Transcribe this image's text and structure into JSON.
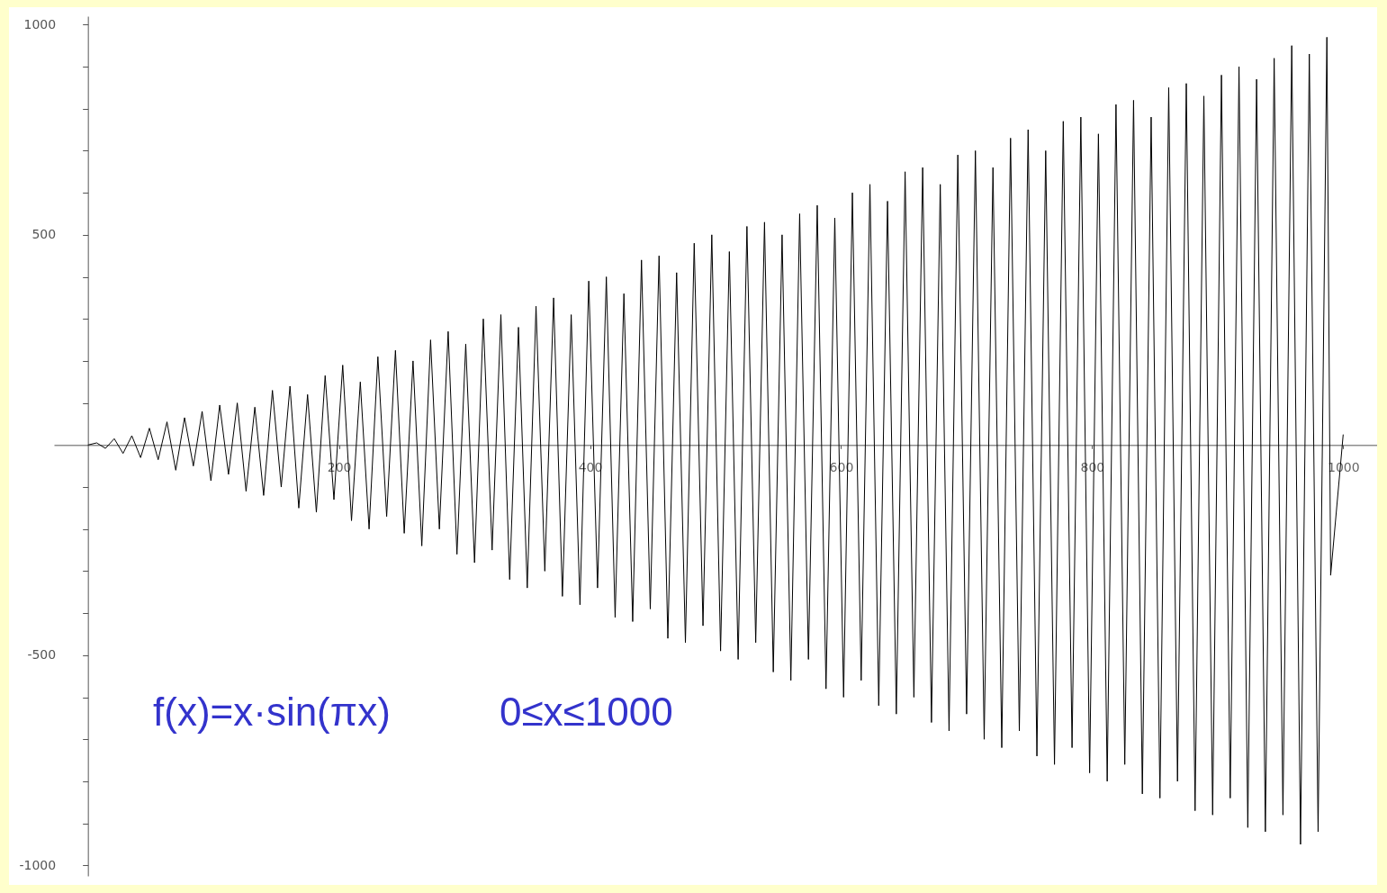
{
  "chart_data": {
    "type": "line",
    "x": [
      0,
      7,
      14,
      21,
      28,
      35,
      42,
      49,
      56,
      63,
      70,
      77,
      84,
      91,
      98,
      105,
      112,
      119,
      126,
      133,
      140,
      147,
      154,
      161,
      168,
      175,
      182,
      189,
      196,
      203,
      210,
      217,
      224,
      231,
      238,
      245,
      252,
      259,
      266,
      273,
      280,
      287,
      294,
      301,
      308,
      315,
      322,
      329,
      336,
      343,
      350,
      357,
      364,
      371,
      378,
      385,
      392,
      399,
      406,
      413,
      420,
      427,
      434,
      441,
      448,
      455,
      462,
      469,
      476,
      483,
      490,
      497,
      504,
      511,
      518,
      525,
      532,
      539,
      546,
      553,
      560,
      567,
      574,
      581,
      588,
      595,
      602,
      609,
      616,
      623,
      630,
      637,
      644,
      651,
      658,
      665,
      672,
      679,
      686,
      693,
      700,
      707,
      714,
      721,
      728,
      735,
      742,
      749,
      756,
      763,
      770,
      777,
      784,
      791,
      798,
      805,
      812,
      819,
      826,
      833,
      840,
      847,
      854,
      861,
      868,
      875,
      882,
      889,
      896,
      903,
      910,
      917,
      924,
      931,
      938,
      945,
      952,
      959,
      966,
      973,
      980,
      987,
      990,
      1000
    ],
    "series": [
      {
        "color": "#000000",
        "values": [
          0,
          5,
          -8,
          15,
          -20,
          22,
          -30,
          40,
          -35,
          55,
          -60,
          65,
          -50,
          80,
          -85,
          95,
          -70,
          100,
          -110,
          90,
          -120,
          130,
          -100,
          140,
          -150,
          120,
          -160,
          165,
          -130,
          190,
          -180,
          150,
          -200,
          210,
          -170,
          225,
          -210,
          200,
          -240,
          250,
          -200,
          270,
          -260,
          240,
          -280,
          300,
          -250,
          310,
          -320,
          280,
          -340,
          330,
          -300,
          350,
          -360,
          310,
          -380,
          390,
          -340,
          400,
          -410,
          360,
          -420,
          440,
          -390,
          450,
          -460,
          410,
          -470,
          480,
          -430,
          500,
          -490,
          460,
          -510,
          520,
          -470,
          530,
          -540,
          500,
          -560,
          550,
          -510,
          570,
          -580,
          540,
          -600,
          600,
          -560,
          620,
          -620,
          580,
          -640,
          650,
          -600,
          660,
          -660,
          620,
          -680,
          690,
          -640,
          700,
          -700,
          660,
          -720,
          730,
          -680,
          750,
          -740,
          700,
          -760,
          770,
          -720,
          780,
          -780,
          740,
          -800,
          810,
          -760,
          820,
          -830,
          780,
          -840,
          850,
          -800,
          860,
          -870,
          830,
          -880,
          880,
          -840,
          900,
          -910,
          870,
          -920,
          920,
          -880,
          950,
          -950,
          930,
          -920,
          970,
          -310,
          25
        ]
      }
    ],
    "xlim": [
      -27,
      1027
    ],
    "ylim": [
      -1025,
      1020
    ],
    "xticks": [
      200,
      400,
      600,
      800,
      1000
    ],
    "yticks": [
      -1000,
      {
        "value": -900,
        "label": null
      },
      {
        "value": -800,
        "label": null
      },
      {
        "value": -700,
        "label": null
      },
      {
        "value": -600,
        "label": null
      },
      -500,
      {
        "value": -400,
        "label": null
      },
      {
        "value": -300,
        "label": null
      },
      {
        "value": -200,
        "label": null
      },
      {
        "value": -100,
        "label": null
      },
      {
        "value": 100,
        "label": null
      },
      {
        "value": 200,
        "label": null
      },
      {
        "value": 300,
        "label": null
      },
      {
        "value": 400,
        "label": null
      },
      500,
      {
        "value": 600,
        "label": null
      },
      {
        "value": 700,
        "label": null
      },
      {
        "value": 800,
        "label": null
      },
      {
        "value": 900,
        "label": null
      },
      1000
    ],
    "annotations": [
      "f(x)=x·sin(πx)",
      "0≤x≤1000"
    ],
    "marker": "none",
    "line_style": "solid",
    "grid": false
  }
}
